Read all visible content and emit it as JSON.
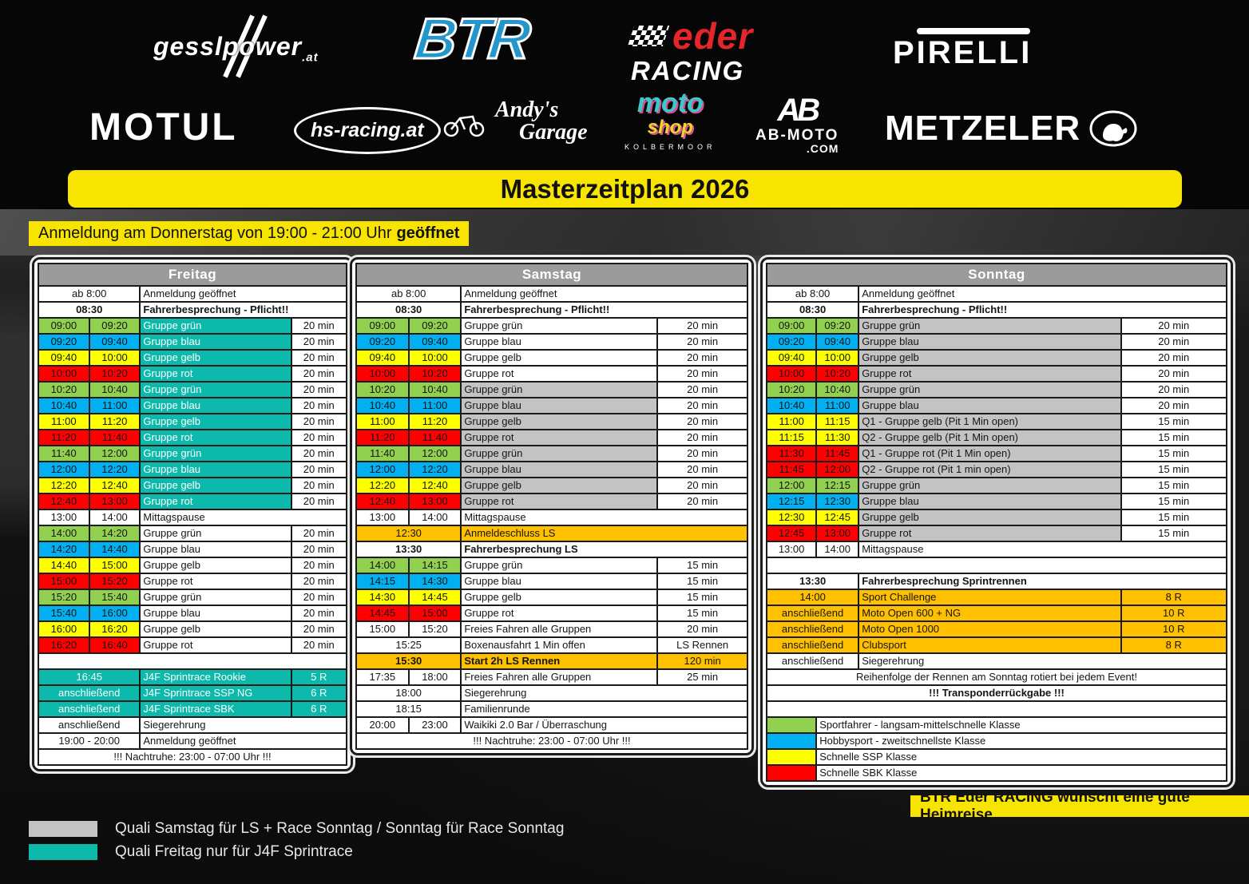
{
  "banners": {
    "title": "Masterzeitplan 2026",
    "registration": "Anmeldung am Donnerstag von 19:00 - 21:00 Uhr",
    "registration_bold": "geöffnet",
    "farewell": "BTR Eder RACING wünscht eine gute Heimreise"
  },
  "sponsors": {
    "gesslpower": {
      "text": "gesslpower",
      "suffix": ".at"
    },
    "btr": {
      "text": "BTR"
    },
    "eder": {
      "line1": "eder",
      "line2": "RACING"
    },
    "pirelli": {
      "text": "PIRELLI"
    },
    "motul": {
      "text": "MOTUL"
    },
    "hs_racing": {
      "text": "hs-racing.at"
    },
    "andys": {
      "line1": "Andy's",
      "line2": "Garage"
    },
    "motoshop": {
      "line1": "moto",
      "line2": "shop",
      "line3": "KOLBERMOOR"
    },
    "ab_moto": {
      "mark": "AB",
      "line1": "AB-MOTO",
      "line2": ".COM"
    },
    "metzeler": {
      "text": "METZELER"
    }
  },
  "colors": {
    "green": "#92d050",
    "blue": "#00b0f0",
    "yellow": "#ffff00",
    "red": "#ff0000",
    "teal": "#0cb9ab",
    "gray": "#c3c3c3",
    "orange": "#ffc000",
    "accent_yellow": "#f7e400",
    "header_gray": "#9b9b9b",
    "btr_blue": "#2496cb",
    "eder_red": "#e4262c"
  },
  "days": [
    {
      "title": "Freitag",
      "rows": [
        {
          "kind": "single",
          "t": "ab 8:00",
          "label": "Anmeldung geöffnet"
        },
        {
          "kind": "single",
          "t": "08:30",
          "tstyle": "redbold",
          "label": "Fahrerbesprechung - Pflicht!!",
          "lstyle": "redbold"
        },
        {
          "kind": "double",
          "t1": "09:00",
          "t2": "09:20",
          "tbg": "green",
          "label": "Gruppe grün",
          "lbg": "teal",
          "ltxt": "white",
          "dur": "20 min"
        },
        {
          "kind": "double",
          "t1": "09:20",
          "t2": "09:40",
          "tbg": "blue",
          "label": "Gruppe blau",
          "lbg": "teal",
          "ltxt": "white",
          "dur": "20 min"
        },
        {
          "kind": "double",
          "t1": "09:40",
          "t2": "10:00",
          "tbg": "yellow",
          "label": "Gruppe gelb",
          "lbg": "teal",
          "ltxt": "white",
          "dur": "20 min"
        },
        {
          "kind": "double",
          "t1": "10:00",
          "t2": "10:20",
          "tbg": "red",
          "label": "Gruppe rot",
          "lbg": "teal",
          "ltxt": "white",
          "dur": "20 min"
        },
        {
          "kind": "double",
          "t1": "10:20",
          "t2": "10:40",
          "tbg": "green",
          "label": "Gruppe grün",
          "lbg": "teal",
          "ltxt": "white",
          "dur": "20 min"
        },
        {
          "kind": "double",
          "t1": "10:40",
          "t2": "11:00",
          "tbg": "blue",
          "label": "Gruppe blau",
          "lbg": "teal",
          "ltxt": "white",
          "dur": "20 min"
        },
        {
          "kind": "double",
          "t1": "11:00",
          "t2": "11:20",
          "tbg": "yellow",
          "label": "Gruppe gelb",
          "lbg": "teal",
          "ltxt": "white",
          "dur": "20 min"
        },
        {
          "kind": "double",
          "t1": "11:20",
          "t2": "11:40",
          "tbg": "red",
          "label": "Gruppe rot",
          "lbg": "teal",
          "ltxt": "white",
          "dur": "20 min"
        },
        {
          "kind": "double",
          "t1": "11:40",
          "t2": "12:00",
          "tbg": "green",
          "label": "Gruppe grün",
          "lbg": "teal",
          "ltxt": "white",
          "dur": "20 min"
        },
        {
          "kind": "double",
          "t1": "12:00",
          "t2": "12:20",
          "tbg": "blue",
          "label": "Gruppe blau",
          "lbg": "teal",
          "ltxt": "white",
          "dur": "20 min"
        },
        {
          "kind": "double",
          "t1": "12:20",
          "t2": "12:40",
          "tbg": "yellow",
          "label": "Gruppe gelb",
          "lbg": "teal",
          "ltxt": "white",
          "dur": "20 min"
        },
        {
          "kind": "double",
          "t1": "12:40",
          "t2": "13:00",
          "tbg": "red",
          "label": "Gruppe rot",
          "lbg": "teal",
          "ltxt": "white",
          "dur": "20 min"
        },
        {
          "kind": "double",
          "t1": "13:00",
          "t2": "14:00",
          "label": "Mittagspause"
        },
        {
          "kind": "double",
          "t1": "14:00",
          "t2": "14:20",
          "tbg": "green",
          "label": "Gruppe grün",
          "dur": "20 min"
        },
        {
          "kind": "double",
          "t1": "14:20",
          "t2": "14:40",
          "tbg": "blue",
          "label": "Gruppe blau",
          "dur": "20 min"
        },
        {
          "kind": "double",
          "t1": "14:40",
          "t2": "15:00",
          "tbg": "yellow",
          "label": "Gruppe gelb",
          "dur": "20 min"
        },
        {
          "kind": "double",
          "t1": "15:00",
          "t2": "15:20",
          "tbg": "red",
          "label": "Gruppe rot",
          "dur": "20 min"
        },
        {
          "kind": "double",
          "t1": "15:20",
          "t2": "15:40",
          "tbg": "green",
          "label": "Gruppe grün",
          "dur": "20 min"
        },
        {
          "kind": "double",
          "t1": "15:40",
          "t2": "16:00",
          "tbg": "blue",
          "label": "Gruppe blau",
          "dur": "20 min"
        },
        {
          "kind": "double",
          "t1": "16:00",
          "t2": "16:20",
          "tbg": "yellow",
          "label": "Gruppe gelb",
          "dur": "20 min"
        },
        {
          "kind": "double",
          "t1": "16:20",
          "t2": "16:40",
          "tbg": "red",
          "label": "Gruppe rot",
          "dur": "20 min"
        },
        {
          "kind": "full",
          "text": ""
        },
        {
          "kind": "single",
          "t": "16:45",
          "tbg": "teal",
          "ttxt": "white",
          "label": "J4F Sprintrace Rookie",
          "lbg": "teal",
          "ltxt": "white",
          "dur": "5 R",
          "dbg": "teal",
          "dtxt": "white"
        },
        {
          "kind": "single",
          "t": "anschließend",
          "tbg": "teal",
          "ttxt": "white",
          "label": "J4F Sprintrace SSP NG",
          "lbg": "teal",
          "ltxt": "white",
          "dur": "6 R",
          "dbg": "teal",
          "dtxt": "white"
        },
        {
          "kind": "single",
          "t": "anschließend",
          "tbg": "teal",
          "ttxt": "white",
          "label": "J4F Sprintrace SBK",
          "lbg": "teal",
          "ltxt": "white",
          "dur": "6 R",
          "dbg": "teal",
          "dtxt": "white"
        },
        {
          "kind": "single",
          "t": "anschließend",
          "label": "Siegerehrung"
        },
        {
          "kind": "single",
          "t": "19:00 - 20:00",
          "label": "Anmeldung geöffnet"
        },
        {
          "kind": "full",
          "text": "!!! Nachtruhe: 23:00 - 07:00 Uhr !!!"
        }
      ]
    },
    {
      "title": "Samstag",
      "rows": [
        {
          "kind": "single",
          "t": "ab 8:00",
          "label": "Anmeldung geöffnet"
        },
        {
          "kind": "single",
          "t": "08:30",
          "tstyle": "redbold",
          "label": "Fahrerbesprechung - Pflicht!!",
          "lstyle": "redbold"
        },
        {
          "kind": "double",
          "t1": "09:00",
          "t2": "09:20",
          "tbg": "green",
          "label": "Gruppe grün",
          "dur": "20 min"
        },
        {
          "kind": "double",
          "t1": "09:20",
          "t2": "09:40",
          "tbg": "blue",
          "label": "Gruppe blau",
          "dur": "20 min"
        },
        {
          "kind": "double",
          "t1": "09:40",
          "t2": "10:00",
          "tbg": "yellow",
          "label": "Gruppe gelb",
          "dur": "20 min"
        },
        {
          "kind": "double",
          "t1": "10:00",
          "t2": "10:20",
          "tbg": "red",
          "label": "Gruppe rot",
          "dur": "20 min"
        },
        {
          "kind": "double",
          "t1": "10:20",
          "t2": "10:40",
          "tbg": "green",
          "label": "Gruppe grün",
          "lbg": "gray",
          "dur": "20 min"
        },
        {
          "kind": "double",
          "t1": "10:40",
          "t2": "11:00",
          "tbg": "blue",
          "label": "Gruppe blau",
          "lbg": "gray",
          "dur": "20 min"
        },
        {
          "kind": "double",
          "t1": "11:00",
          "t2": "11:20",
          "tbg": "yellow",
          "label": "Gruppe gelb",
          "lbg": "gray",
          "dur": "20 min"
        },
        {
          "kind": "double",
          "t1": "11:20",
          "t2": "11:40",
          "tbg": "red",
          "label": "Gruppe rot",
          "lbg": "gray",
          "dur": "20 min"
        },
        {
          "kind": "double",
          "t1": "11:40",
          "t2": "12:00",
          "tbg": "green",
          "label": "Gruppe grün",
          "lbg": "gray",
          "dur": "20 min"
        },
        {
          "kind": "double",
          "t1": "12:00",
          "t2": "12:20",
          "tbg": "blue",
          "label": "Gruppe blau",
          "lbg": "gray",
          "dur": "20 min"
        },
        {
          "kind": "double",
          "t1": "12:20",
          "t2": "12:40",
          "tbg": "yellow",
          "label": "Gruppe gelb",
          "lbg": "gray",
          "dur": "20 min"
        },
        {
          "kind": "double",
          "t1": "12:40",
          "t2": "13:00",
          "tbg": "red",
          "label": "Gruppe rot",
          "lbg": "gray",
          "dur": "20 min"
        },
        {
          "kind": "double",
          "t1": "13:00",
          "t2": "14:00",
          "label": "Mittagspause"
        },
        {
          "kind": "single",
          "t": "12:30",
          "tbg": "orange",
          "label": "Anmeldeschluss LS",
          "lbg": "orange"
        },
        {
          "kind": "single",
          "t": "13:30",
          "tstyle": "redbold",
          "label": "Fahrerbesprechung LS",
          "lstyle": "redbold"
        },
        {
          "kind": "double",
          "t1": "14:00",
          "t2": "14:15",
          "tbg": "green",
          "label": "Gruppe grün",
          "dur": "15 min"
        },
        {
          "kind": "double",
          "t1": "14:15",
          "t2": "14:30",
          "tbg": "blue",
          "label": "Gruppe blau",
          "dur": "15 min"
        },
        {
          "kind": "double",
          "t1": "14:30",
          "t2": "14:45",
          "tbg": "yellow",
          "label": "Gruppe gelb",
          "dur": "15 min"
        },
        {
          "kind": "double",
          "t1": "14:45",
          "t2": "15:00",
          "tbg": "red",
          "label": "Gruppe rot",
          "dur": "15 min"
        },
        {
          "kind": "double",
          "t1": "15:00",
          "t2": "15:20",
          "label": "Freies Fahren alle Gruppen",
          "dur": "20 min"
        },
        {
          "kind": "single",
          "t": "15:25",
          "label": "Boxenausfahrt 1 Min offen",
          "dur": "LS Rennen"
        },
        {
          "kind": "single",
          "t": "15:30",
          "tbg": "orange",
          "tstyle": "bold",
          "label": "Start 2h LS Rennen",
          "lbg": "orange",
          "lstyle": "bold",
          "dur": "120 min",
          "dbg": "orange"
        },
        {
          "kind": "double",
          "t1": "17:35",
          "t2": "18:00",
          "label": "Freies Fahren alle Gruppen",
          "dur": "25 min"
        },
        {
          "kind": "single",
          "t": "18:00",
          "label": "Siegerehrung"
        },
        {
          "kind": "single",
          "t": "18:15",
          "label": "Familienrunde"
        },
        {
          "kind": "double",
          "t1": "20:00",
          "t2": "23:00",
          "label": "Waikiki 2.0 Bar / Überraschung"
        },
        {
          "kind": "full",
          "text": "!!! Nachtruhe: 23:00 - 07:00 Uhr !!!"
        }
      ]
    },
    {
      "title": "Sonntag",
      "rows": [
        {
          "kind": "single",
          "t": "ab 8:00",
          "label": "Anmeldung geöffnet"
        },
        {
          "kind": "single",
          "t": "08:30",
          "tstyle": "redbold",
          "label": "Fahrerbesprechung - Pflicht!!",
          "lstyle": "redbold"
        },
        {
          "kind": "double",
          "t1": "09:00",
          "t2": "09:20",
          "tbg": "green",
          "label": "Gruppe grün",
          "lbg": "gray",
          "dur": "20 min"
        },
        {
          "kind": "double",
          "t1": "09:20",
          "t2": "09:40",
          "tbg": "blue",
          "label": "Gruppe blau",
          "lbg": "gray",
          "dur": "20 min"
        },
        {
          "kind": "double",
          "t1": "09:40",
          "t2": "10:00",
          "tbg": "yellow",
          "label": "Gruppe gelb",
          "lbg": "gray",
          "dur": "20 min"
        },
        {
          "kind": "double",
          "t1": "10:00",
          "t2": "10:20",
          "tbg": "red",
          "label": "Gruppe rot",
          "lbg": "gray",
          "dur": "20 min"
        },
        {
          "kind": "double",
          "t1": "10:20",
          "t2": "10:40",
          "tbg": "green",
          "label": "Gruppe grün",
          "lbg": "gray",
          "dur": "20 min"
        },
        {
          "kind": "double",
          "t1": "10:40",
          "t2": "11:00",
          "tbg": "blue",
          "label": "Gruppe blau",
          "lbg": "gray",
          "dur": "20 min"
        },
        {
          "kind": "double",
          "t1": "11:00",
          "t2": "11:15",
          "tbg": "yellow",
          "label": "Q1 - Gruppe gelb (Pit 1 Min open)",
          "lbg": "gray",
          "dur": "15 min"
        },
        {
          "kind": "double",
          "t1": "11:15",
          "t2": "11:30",
          "tbg": "yellow",
          "label": "Q2 - Gruppe gelb (Pit 1 Min open)",
          "lbg": "gray",
          "dur": "15 min"
        },
        {
          "kind": "double",
          "t1": "11:30",
          "t2": "11:45",
          "tbg": "red",
          "label": "Q1 - Gruppe rot (Pit 1 Min open)",
          "lbg": "gray",
          "dur": "15 min"
        },
        {
          "kind": "double",
          "t1": "11:45",
          "t2": "12:00",
          "tbg": "red",
          "label": "Q2 - Gruppe rot (Pit 1 min open)",
          "lbg": "gray",
          "dur": "15 min"
        },
        {
          "kind": "double",
          "t1": "12:00",
          "t2": "12:15",
          "tbg": "green",
          "label": "Gruppe grün",
          "lbg": "gray",
          "dur": "15 min"
        },
        {
          "kind": "double",
          "t1": "12:15",
          "t2": "12:30",
          "tbg": "blue",
          "label": "Gruppe blau",
          "lbg": "gray",
          "dur": "15 min"
        },
        {
          "kind": "double",
          "t1": "12:30",
          "t2": "12:45",
          "tbg": "yellow",
          "label": "Gruppe gelb",
          "lbg": "gray",
          "dur": "15 min"
        },
        {
          "kind": "double",
          "t1": "12:45",
          "t2": "13:00",
          "tbg": "red",
          "label": "Gruppe rot",
          "lbg": "gray",
          "dur": "15 min"
        },
        {
          "kind": "double",
          "t1": "13:00",
          "t2": "14:00",
          "label": "Mittagspause"
        },
        {
          "kind": "full",
          "text": ""
        },
        {
          "kind": "single",
          "t": "13:30",
          "tstyle": "redbold",
          "label": "Fahrerbesprechung Sprintrennen",
          "lstyle": "redbold"
        },
        {
          "kind": "single",
          "t": "14:00",
          "tbg": "orange",
          "label": "Sport Challenge",
          "lbg": "orange",
          "dur": "8 R",
          "dbg": "orange"
        },
        {
          "kind": "single",
          "t": "anschließend",
          "tbg": "orange",
          "label": "Moto Open 600 + NG",
          "lbg": "orange",
          "dur": "10 R",
          "dbg": "orange"
        },
        {
          "kind": "single",
          "t": "anschließend",
          "tbg": "orange",
          "label": "Moto Open 1000",
          "lbg": "orange",
          "dur": "10 R",
          "dbg": "orange"
        },
        {
          "kind": "single",
          "t": "anschließend",
          "tbg": "orange",
          "label": "Clubsport",
          "lbg": "orange",
          "dur": "8 R",
          "dbg": "orange"
        },
        {
          "kind": "single",
          "t": "anschließend",
          "label": "Siegerehrung"
        },
        {
          "kind": "full",
          "text": "Reihenfolge der Rennen am Sonntag rotiert bei jedem Event!",
          "style": "red"
        },
        {
          "kind": "full",
          "text": "!!! Transponderrückgabe !!!",
          "style": "bold"
        },
        {
          "kind": "full",
          "text": ""
        },
        {
          "kind": "legend",
          "swatch": "green",
          "label": "Sportfahrer - langsam-mittelschnelle Klasse"
        },
        {
          "kind": "legend",
          "swatch": "blue",
          "label": "Hobbysport - zweitschnellste Klasse"
        },
        {
          "kind": "legend",
          "swatch": "yellow",
          "label": "Schnelle SSP Klasse"
        },
        {
          "kind": "legend",
          "swatch": "red",
          "label": "Schnelle SBK Klasse"
        }
      ]
    }
  ],
  "page_legend": [
    {
      "swatch": "gray",
      "label": "Quali Samstag für LS + Race Sonntag / Sonntag für Race Sonntag"
    },
    {
      "swatch": "teal",
      "label": "Quali Freitag nur für J4F Sprintrace"
    }
  ]
}
